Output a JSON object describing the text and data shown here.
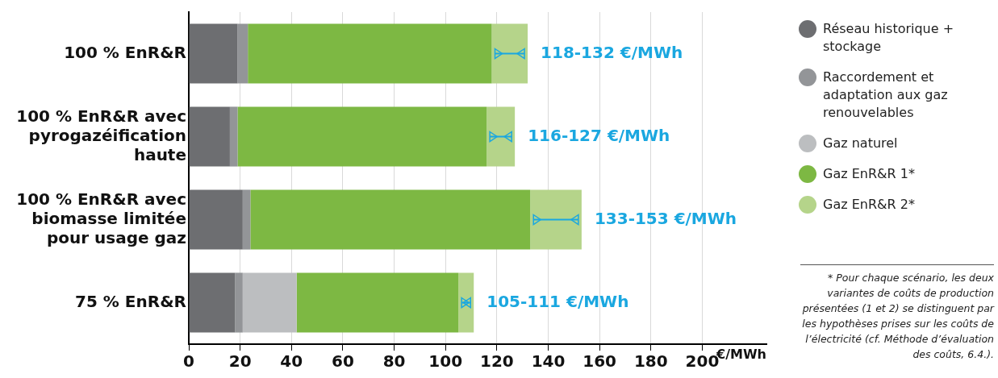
{
  "chart_data": {
    "type": "bar",
    "orientation": "horizontal",
    "stacked": true,
    "xlabel": "€/MWh",
    "categories": [
      "100 % EnR&R",
      "100 % EnR&R avec pyrogazéification haute",
      "100 % EnR&R avec biomasse limitée pour usage gaz",
      "75 % EnR&R"
    ],
    "series": [
      {
        "name": "Réseau historique + stockage",
        "color": "#6d6e71",
        "values": [
          19,
          16,
          21,
          18
        ]
      },
      {
        "name": "Raccordement et adaptation aux gaz renouvelables",
        "color": "#939598",
        "values": [
          4,
          3,
          3,
          3
        ]
      },
      {
        "name": "Gaz naturel",
        "color": "#bcbec0",
        "values": [
          0,
          0,
          0,
          21
        ]
      },
      {
        "name": "Gaz EnR&R 1*",
        "color": "#7db843",
        "values": [
          95,
          97,
          109,
          63
        ]
      },
      {
        "name": "Gaz EnR&R 2*",
        "color": "#b5d48a",
        "values": [
          14,
          11,
          20,
          6
        ]
      }
    ],
    "xlim": [
      0,
      225
    ],
    "xticks": [
      0,
      20,
      40,
      60,
      80,
      100,
      120,
      140,
      160,
      180,
      200
    ],
    "grid": "x",
    "legend": "right",
    "annotations": [
      {
        "text": "118-132 €/MWh",
        "x": 132,
        "y": "100 % EnR&R"
      },
      {
        "text": "116-127 €/MWh",
        "x": 127,
        "y": "100 % EnR&R avec pyrogazéification haute"
      },
      {
        "text": "133-153 €/MWh",
        "x": 153,
        "y": "100 % EnR&R avec biomasse limitée pour usage gaz"
      },
      {
        "text": "105-111 €/MWh",
        "x": 111,
        "y": "75 % EnR&R"
      },
      "* Pour chaque scénario, les deux variantes de coûts de production présentées (1 et 2) se distinguent par les hypothèses prises sur les coûts de l’électricité (cf. Méthode d’évaluation des coûts, 6.4.)."
    ]
  }
}
